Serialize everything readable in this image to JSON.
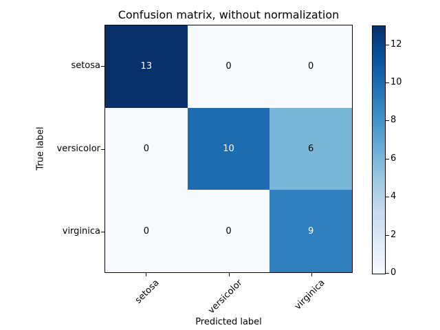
{
  "figure": {
    "title": "Confusion matrix, without normalization",
    "xlabel": "Predicted label",
    "ylabel": "True label"
  },
  "chart_data": {
    "type": "heatmap",
    "title": "Confusion matrix, without normalization",
    "xlabel": "Predicted label",
    "ylabel": "True label",
    "x_categories": [
      "setosa",
      "versicolor",
      "virginica"
    ],
    "y_categories": [
      "setosa",
      "versicolor",
      "virginica"
    ],
    "matrix": [
      [
        13,
        0,
        0
      ],
      [
        0,
        10,
        6
      ],
      [
        0,
        0,
        9
      ]
    ],
    "vmin": 0,
    "vmax": 13,
    "colormap": "Blues",
    "legend_position": "right-colorbar",
    "grid": false,
    "colorbar_ticks": [
      0,
      2,
      4,
      6,
      8,
      10,
      12
    ],
    "cell_colors": [
      [
        "#08306b",
        "#f7fbff",
        "#f7fbff"
      ],
      [
        "#f7fbff",
        "#1d6cb1",
        "#7bb7d9"
      ],
      [
        "#f7fbff",
        "#f7fbff",
        "#3080bd"
      ]
    ],
    "cell_text_colors": [
      [
        "#ffffff",
        "#000000",
        "#000000"
      ],
      [
        "#000000",
        "#ffffff",
        "#000000"
      ],
      [
        "#000000",
        "#000000",
        "#ffffff"
      ]
    ],
    "colorbar_gradient_bottom_to_top": [
      "#f7fbff",
      "#deebf7",
      "#c6dbef",
      "#9ecae1",
      "#6baed6",
      "#4292c6",
      "#2171b5",
      "#08519c",
      "#08306b"
    ],
    "axis_color": "#000000"
  }
}
